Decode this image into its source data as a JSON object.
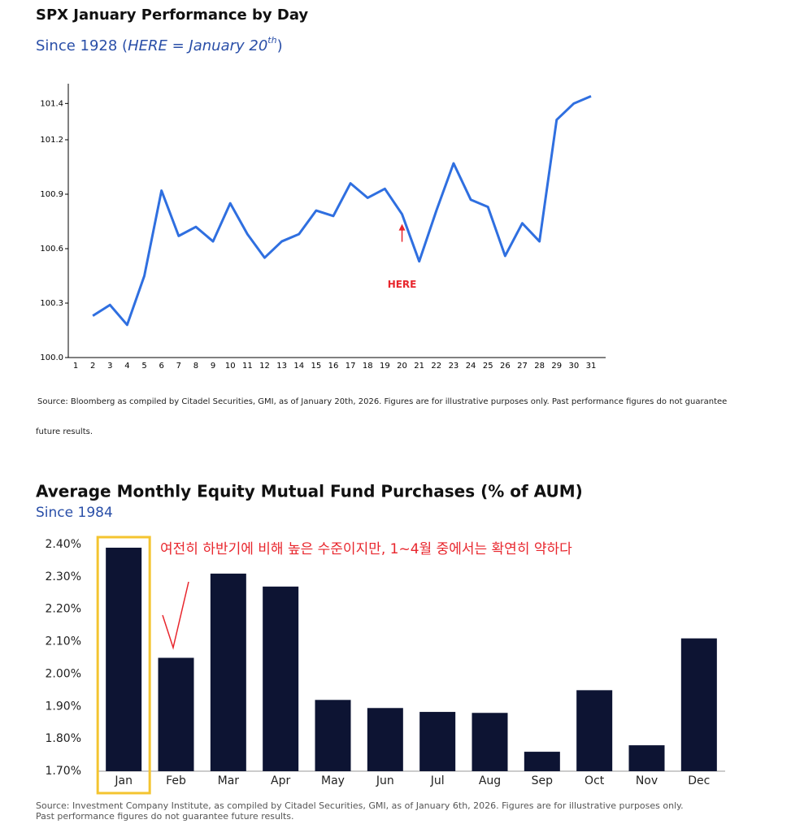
{
  "chart_data": [
    {
      "type": "line",
      "title": "SPX January Performance by Day",
      "subtitle_parts": [
        "Since 1928 (",
        "HERE = January 20",
        "th",
        ")"
      ],
      "categories": [
        "1",
        "2",
        "3",
        "4",
        "5",
        "6",
        "7",
        "8",
        "9",
        "10",
        "11",
        "12",
        "13",
        "14",
        "15",
        "16",
        "17",
        "18",
        "19",
        "20",
        "21",
        "22",
        "23",
        "24",
        "25",
        "26",
        "27",
        "28",
        "29",
        "30",
        "31"
      ],
      "series": [
        {
          "color": "#2f6fe0",
          "values": [
            null,
            100.23,
            100.29,
            100.18,
            100.45,
            100.92,
            100.67,
            100.72,
            100.64,
            100.85,
            100.68,
            100.55,
            100.64,
            100.68,
            100.81,
            100.78,
            100.96,
            100.88,
            100.93,
            100.79,
            100.53,
            100.81,
            101.07,
            100.87,
            100.83,
            100.56,
            100.74,
            100.64,
            101.31,
            101.4,
            101.44
          ]
        }
      ],
      "ylim": [
        100,
        101.5
      ],
      "yticks": [
        {
          "value": 100,
          "label": "100.0"
        },
        100.3,
        100.6,
        100.9,
        101.2,
        101.4
      ],
      "annotation": {
        "text": "HERE",
        "category_index": 19,
        "color": "#e8262d"
      },
      "source_lines": [
        "Source: Bloomberg as compiled by Citadel Securities, GMI, as of January 20th, 2026. Figures are for illustrative purposes only. Past performance figures do not guarantee",
        "future results."
      ]
    },
    {
      "type": "bar",
      "title": "Average Monthly Equity Mutual Fund Purchases (% of AUM)",
      "subtitle": "Since 1984",
      "categories": [
        "Jan",
        "Feb",
        "Mar",
        "Apr",
        "May",
        "Jun",
        "Jul",
        "Aug",
        "Sep",
        "Oct",
        "Nov",
        "Dec"
      ],
      "values": [
        2.39,
        2.05,
        2.31,
        2.27,
        1.92,
        1.895,
        1.883,
        1.88,
        1.76,
        1.95,
        1.78,
        2.11
      ],
      "color": "#0d1433",
      "ylim": [
        1.7,
        2.42
      ],
      "yticks": [
        {
          "value": 1.7,
          "label": "1.70%"
        },
        {
          "value": 1.8,
          "label": "1.80%"
        },
        {
          "value": 1.9,
          "label": "1.90%"
        },
        {
          "value": 2.0,
          "label": "2.00%"
        },
        {
          "value": 2.1,
          "label": "2.10%"
        },
        {
          "value": 2.2,
          "label": "2.20%"
        },
        {
          "value": 2.3,
          "label": "2.30%"
        },
        {
          "value": 2.4,
          "label": "2.40%"
        }
      ],
      "highlight_index": 0,
      "annotation": {
        "text": "여전히 하반기에 비해 높은 수준이지만, 1~4월 중에서는 확연히 약하다",
        "color": "#e8262d"
      },
      "source_lines": [
        "Source: Investment Company Institute, as compiled by Citadel Securities, GMI, as of January 6th, 2026. Figures are for illustrative purposes only.",
        "Past performance figures do not guarantee future results."
      ]
    }
  ]
}
